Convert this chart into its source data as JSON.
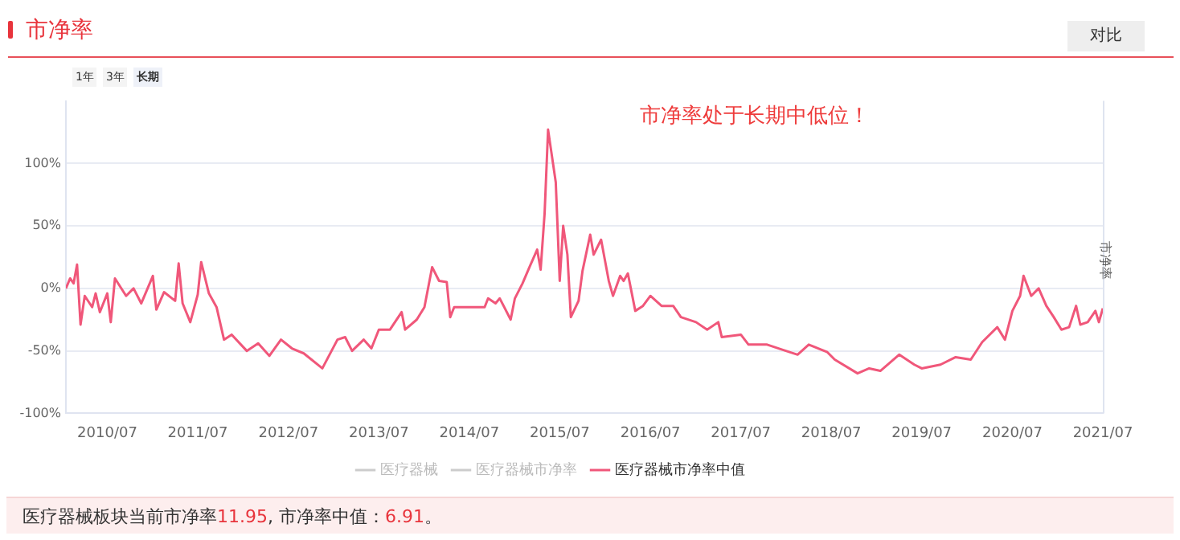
{
  "chart_data": {
    "type": "line",
    "title": "市净率",
    "y2label": "市净率",
    "annotations": [
      "对比",
      "1年",
      "3年",
      "长期",
      "市净率处于长期中低位！",
      "医疗器械板块当前市净率11.95, 市净率中值：6.91。"
    ],
    "xlim": [
      "2010-01-15",
      "2021-07-01"
    ],
    "xticks": [
      {
        "value": "2010-07",
        "label": "2010/07"
      },
      {
        "value": "2011-07",
        "label": "2011/07"
      },
      {
        "value": "2012-07",
        "label": "2012/07"
      },
      {
        "value": "2013-07",
        "label": "2013/07"
      },
      {
        "value": "2014-07",
        "label": "2014/07"
      },
      {
        "value": "2015-07",
        "label": "2015/07"
      },
      {
        "value": "2016-07",
        "label": "2016/07"
      },
      {
        "value": "2017-07",
        "label": "2017/07"
      },
      {
        "value": "2018-07",
        "label": "2018/07"
      },
      {
        "value": "2019-07",
        "label": "2019/07"
      },
      {
        "value": "2020-07",
        "label": "2020/07"
      },
      {
        "value": "2021-07",
        "label": "2021/07"
      }
    ],
    "ylim": [
      -100,
      150
    ],
    "yticks": [
      {
        "value": -100,
        "label": "-100%"
      },
      {
        "value": -50,
        "label": "-50%"
      },
      {
        "value": 0,
        "label": "0%"
      },
      {
        "value": 50,
        "label": "50%"
      },
      {
        "value": 100,
        "label": "100%"
      }
    ],
    "grid": "y",
    "legend": "bottom",
    "marker": "none",
    "line_style": "solid",
    "x": [
      "2010-01-15",
      "2010-02-01",
      "2010-02-15",
      "2010-03-01",
      "2010-03-15",
      "2010-04-01",
      "2010-05-01",
      "2010-05-15",
      "2010-06-01",
      "2010-07-01",
      "2010-07-15",
      "2010-08-01",
      "2010-09-15",
      "2010-10-15",
      "2010-11-15",
      "2011-01-01",
      "2011-01-15",
      "2011-02-15",
      "2011-04-01",
      "2011-04-15",
      "2011-05-01",
      "2011-06-01",
      "2011-07-01",
      "2011-07-15",
      "2011-08-15",
      "2011-09-15",
      "2011-10-15",
      "2011-11-15",
      "2012-01-15",
      "2012-03-01",
      "2012-04-15",
      "2012-06-01",
      "2012-07-15",
      "2012-09-01",
      "2012-11-15",
      "2013-01-15",
      "2013-02-15",
      "2013-03-15",
      "2013-05-01",
      "2013-06-01",
      "2013-07-01",
      "2013-08-15",
      "2013-10-01",
      "2013-10-15",
      "2013-12-01",
      "2014-01-01",
      "2014-02-01",
      "2014-03-01",
      "2014-04-01",
      "2014-04-15",
      "2014-05-01",
      "2014-09-01",
      "2014-09-15",
      "2014-10-15",
      "2014-11-01",
      "2014-12-15",
      "2015-01-01",
      "2015-02-01",
      "2015-03-01",
      "2015-04-01",
      "2015-04-15",
      "2015-05-01",
      "2015-05-15",
      "2015-06-15",
      "2015-07-01",
      "2015-07-15",
      "2015-08-01",
      "2015-08-15",
      "2015-09-15",
      "2015-10-01",
      "2015-11-01",
      "2015-11-15",
      "2015-12-15",
      "2016-01-15",
      "2016-02-01",
      "2016-03-01",
      "2016-03-15",
      "2016-04-01",
      "2016-05-01",
      "2016-06-01",
      "2016-07-01",
      "2016-08-15",
      "2016-10-01",
      "2016-11-01",
      "2017-01-01",
      "2017-02-15",
      "2017-04-01",
      "2017-04-15",
      "2017-07-01",
      "2017-08-01",
      "2017-10-15",
      "2017-12-15",
      "2018-02-15",
      "2018-04-01",
      "2018-06-15",
      "2018-07-15",
      "2018-10-15",
      "2018-12-01",
      "2019-01-15",
      "2019-04-01",
      "2019-06-01",
      "2019-07-01",
      "2019-09-15",
      "2019-11-15",
      "2020-01-15",
      "2020-03-01",
      "2020-05-01",
      "2020-06-01",
      "2020-07-01",
      "2020-08-01",
      "2020-08-15",
      "2020-09-15",
      "2020-10-15",
      "2020-11-15",
      "2020-12-15",
      "2021-01-15",
      "2021-02-15",
      "2021-03-15",
      "2021-04-01",
      "2021-05-01",
      "2021-06-01",
      "2021-06-15",
      "2021-07-01"
    ],
    "series": [
      {
        "name": "医疗器械",
        "color": "#cccccc",
        "values": [
          null,
          null,
          null,
          null,
          null,
          null,
          null,
          null,
          null,
          null,
          null,
          null,
          null,
          null,
          null,
          null,
          null,
          null,
          null,
          null,
          null,
          null,
          null,
          null,
          null,
          null,
          null,
          null,
          null,
          null,
          null,
          null,
          null,
          null,
          null,
          null,
          null,
          null,
          null,
          null,
          null,
          null,
          null,
          null,
          null,
          null,
          null,
          null,
          null,
          null,
          null,
          null,
          null,
          null,
          null,
          null,
          null,
          null,
          null,
          null,
          null,
          null,
          null,
          null,
          null,
          null,
          null,
          null,
          null,
          null,
          null,
          null,
          null,
          null,
          null,
          null,
          null,
          null,
          null,
          null,
          null,
          null,
          null,
          null,
          null,
          null,
          null,
          null,
          null,
          null,
          null,
          null,
          null,
          null,
          null,
          null,
          null,
          null,
          null,
          null,
          null,
          null,
          null,
          null,
          null,
          null,
          null,
          null,
          null,
          null,
          null,
          null,
          null,
          null,
          null,
          null,
          null,
          null,
          null,
          null,
          null,
          null,
          null
        ]
      },
      {
        "name": "医疗器械市净率",
        "color": "#cccccc",
        "values": [
          null,
          null,
          null,
          null,
          null,
          null,
          null,
          null,
          null,
          null,
          null,
          null,
          null,
          null,
          null,
          null,
          null,
          null,
          null,
          null,
          null,
          null,
          null,
          null,
          null,
          null,
          null,
          null,
          null,
          null,
          null,
          null,
          null,
          null,
          null,
          null,
          null,
          null,
          null,
          null,
          null,
          null,
          null,
          null,
          null,
          null,
          null,
          null,
          null,
          null,
          null,
          null,
          null,
          null,
          null,
          null,
          null,
          null,
          null,
          null,
          null,
          null,
          null,
          null,
          null,
          null,
          null,
          null,
          null,
          null,
          null,
          null,
          null,
          null,
          null,
          null,
          null,
          null,
          null,
          null,
          null,
          null,
          null,
          null,
          null,
          null,
          null,
          null,
          null,
          null,
          null,
          null,
          null,
          null,
          null,
          null,
          null,
          null,
          null,
          null,
          null,
          null,
          null,
          null,
          null,
          null,
          null,
          null,
          null,
          null,
          null,
          null,
          null,
          null,
          null,
          null,
          null,
          null,
          null,
          null,
          null,
          null,
          null
        ]
      },
      {
        "name": "医疗器械市净率中值",
        "color": "#f0577a",
        "values": [
          0,
          8,
          4,
          19,
          -29,
          -6,
          -15,
          -4,
          -19,
          -4,
          -27,
          8,
          -6,
          0,
          -12,
          10,
          -17,
          -3,
          -10,
          20,
          -12,
          -27,
          -5,
          21,
          -4,
          -15,
          -41,
          -37,
          -50,
          -44,
          -54,
          -41,
          -48,
          -52,
          -64,
          -41,
          -39,
          -50,
          -41,
          -48,
          -33,
          -33,
          -19,
          -33,
          -25,
          -15,
          17,
          6,
          5,
          -23,
          -15,
          -15,
          -8,
          -12,
          -8,
          -25,
          -8,
          4,
          17,
          31,
          15,
          60,
          127,
          85,
          6,
          50,
          27,
          -23,
          -10,
          14,
          43,
          27,
          39,
          6,
          -6,
          10,
          6,
          12,
          -18,
          -14,
          -6,
          -14,
          -14,
          -23,
          -27,
          -33,
          -27,
          -39,
          -37,
          -45,
          -45,
          -49,
          -53,
          -45,
          -51,
          -57,
          -68,
          -64,
          -66,
          -53,
          -61,
          -64,
          -61,
          -55,
          -57,
          -43,
          -31,
          -41,
          -18,
          -6,
          10,
          -6,
          0,
          -14,
          -23,
          -33,
          -31,
          -14,
          -29,
          -27,
          -18,
          -27,
          -16
        ]
      }
    ]
  }
}
